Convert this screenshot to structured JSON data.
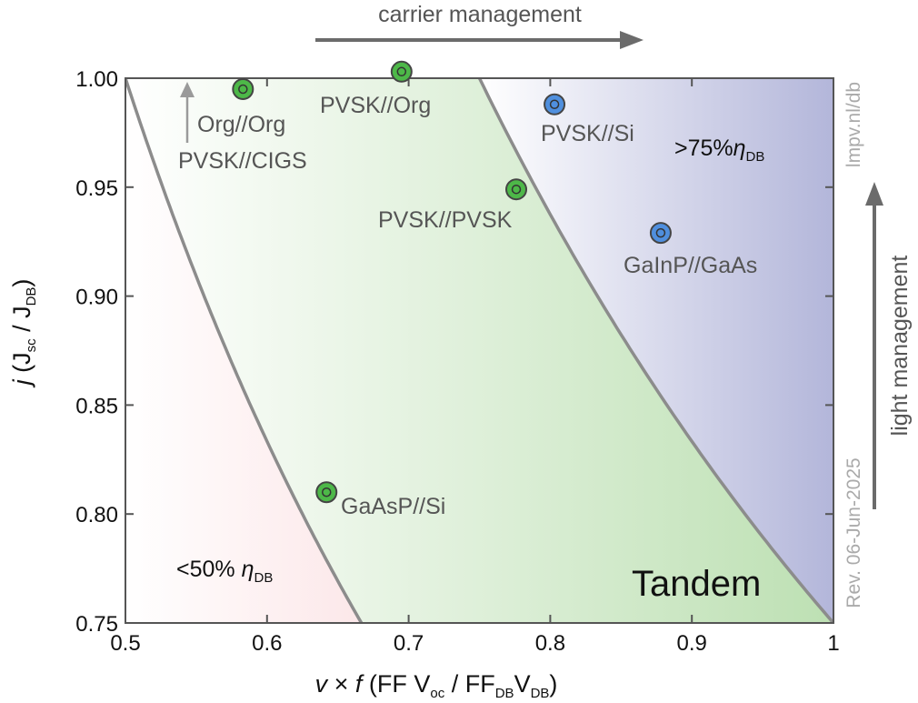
{
  "colors": {
    "red_region": "#f6b8bd",
    "green_region": "#bfe0b6",
    "blue_region": "#b5b8dc",
    "boundary": "#8c8c8c",
    "green_marker": "#4db848",
    "blue_marker": "#4f8fde",
    "arrow": "#6b6b6b"
  },
  "chart_data": {
    "type": "scatter",
    "xlim": [
      0.5,
      1
    ],
    "ylim": [
      0.75,
      1.0
    ],
    "xticks": [
      "0.5",
      "0.6",
      "0.7",
      "0.8",
      "0.9",
      "1"
    ],
    "yticks": [
      "0.75",
      "0.80",
      "0.85",
      "0.90",
      "0.95",
      "1.00"
    ],
    "xtick_values": [
      0.5,
      0.6,
      0.7,
      0.8,
      0.9,
      1.0
    ],
    "ytick_values": [
      0.75,
      0.8,
      0.85,
      0.9,
      0.95,
      1.0
    ],
    "xlabel": {
      "italic": "v",
      "rest": " × ",
      "italic2": "f",
      "paren_open": "  (FF V",
      "sub1": "oc",
      "mid": " / FF",
      "sub2": "DB",
      "mid2": "V",
      "sub3": "DB",
      "close": ")"
    },
    "ylabel": {
      "italic": "j",
      "paren_open": "  (J",
      "sub1": "sc",
      "mid": " / J",
      "sub2": "DB",
      "close": ")"
    },
    "regions": [
      {
        "label_main": "<50% ",
        "label_italic": "η",
        "label_sub": "DB",
        "threshold": 0.5
      },
      {
        "label": "Tandem"
      },
      {
        "label_main": ">75%",
        "label_italic": "η",
        "label_sub": "DB",
        "threshold": 0.75
      }
    ],
    "points": [
      {
        "name": "Org//Org",
        "x": 0.583,
        "y": 0.995,
        "group": "tandem"
      },
      {
        "name": "PVSK//Org",
        "x": 0.695,
        "y": 1.003,
        "group": "tandem"
      },
      {
        "name": "PVSK//PVSK",
        "x": 0.776,
        "y": 0.949,
        "group": "tandem"
      },
      {
        "name": "GaAsP//Si",
        "x": 0.642,
        "y": 0.81,
        "group": "tandem"
      },
      {
        "name": "PVSK//Si",
        "x": 0.803,
        "y": 0.988,
        "group": "high"
      },
      {
        "name": "GaInP//GaAs",
        "x": 0.878,
        "y": 0.929,
        "group": "high"
      }
    ],
    "extra_labels": {
      "pvsk_cigs": "PVSK//CIGS"
    },
    "annotations": {
      "top_arrow": "carrier management",
      "right_arrow": "light management",
      "source": "lmpv.nl/db",
      "revision": "Rev. 06-Jun-2025"
    }
  }
}
